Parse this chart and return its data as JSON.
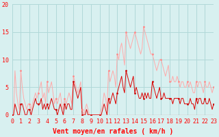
{
  "bg_color": "#d8f0f0",
  "grid_color": "#b0d8d8",
  "line_color_mean": "#dd0000",
  "line_color_gust": "#ffaaaa",
  "xlabel": "Vent moyen/en rafales ( km/h )",
  "ylim": [
    0,
    20
  ],
  "xlim_min": 0,
  "xlim_max": 23,
  "yticks": [
    0,
    5,
    10,
    15,
    20
  ],
  "xticks": [
    0,
    1,
    2,
    3,
    4,
    5,
    6,
    7,
    8,
    9,
    10,
    11,
    12,
    13,
    14,
    15,
    16,
    17,
    18,
    19,
    20,
    21,
    22,
    23
  ],
  "tick_fontsize": 6,
  "xlabel_fontsize": 7,
  "lw_mean": 0.7,
  "lw_gust": 0.7,
  "marker_size": 2.0,
  "t": [
    0.0,
    0.17,
    0.33,
    0.5,
    0.67,
    0.83,
    1.0,
    1.17,
    1.33,
    1.5,
    1.67,
    1.83,
    2.0,
    2.17,
    2.33,
    2.5,
    2.67,
    2.83,
    3.0,
    3.17,
    3.33,
    3.5,
    3.67,
    3.83,
    4.0,
    4.17,
    4.33,
    4.5,
    4.67,
    4.83,
    5.0,
    5.17,
    5.33,
    5.5,
    5.67,
    5.83,
    6.0,
    6.17,
    6.33,
    6.5,
    6.67,
    6.83,
    7.0,
    7.17,
    7.33,
    7.5,
    7.67,
    7.83,
    8.0,
    8.17,
    8.33,
    8.5,
    8.67,
    8.83,
    9.0,
    9.17,
    9.33,
    9.5,
    9.67,
    9.83,
    10.0,
    10.17,
    10.33,
    10.5,
    10.67,
    10.83,
    11.0,
    11.17,
    11.33,
    11.5,
    11.67,
    11.83,
    12.0,
    12.17,
    12.33,
    12.5,
    12.67,
    12.83,
    13.0,
    13.17,
    13.33,
    13.5,
    13.67,
    13.83,
    14.0,
    14.17,
    14.33,
    14.5,
    14.67,
    14.83,
    15.0,
    15.17,
    15.33,
    15.5,
    15.67,
    15.83,
    16.0,
    16.17,
    16.33,
    16.5,
    16.67,
    16.83,
    17.0,
    17.17,
    17.33,
    17.5,
    17.67,
    17.83,
    18.0,
    18.17,
    18.33,
    18.5,
    18.67,
    18.83,
    19.0,
    19.17,
    19.33,
    19.5,
    19.67,
    19.83,
    20.0,
    20.17,
    20.33,
    20.5,
    20.67,
    20.83,
    21.0,
    21.17,
    21.33,
    21.5,
    21.67,
    21.83,
    22.0,
    22.17,
    22.33,
    22.5,
    22.67,
    22.83,
    23.0
  ],
  "mean": [
    0,
    0,
    2,
    1,
    0,
    0,
    2,
    2,
    1,
    0,
    0,
    1,
    1,
    0,
    1,
    2,
    3,
    2,
    2,
    2,
    3,
    1,
    2,
    1,
    2,
    1,
    2,
    3,
    2,
    1,
    1,
    0,
    1,
    2,
    1,
    0,
    2,
    1,
    2,
    2,
    1,
    1,
    6,
    5,
    4,
    3,
    4,
    5,
    0,
    0,
    0,
    1,
    0,
    0,
    0,
    0,
    0,
    0,
    0,
    0,
    0,
    0,
    1,
    2,
    1,
    0,
    3,
    2,
    3,
    4,
    3,
    2,
    4,
    5,
    6,
    7,
    5,
    4,
    8,
    7,
    6,
    5,
    6,
    7,
    4,
    5,
    4,
    3,
    3,
    4,
    3,
    4,
    3,
    4,
    3,
    3,
    6,
    5,
    4,
    3,
    4,
    5,
    3,
    3,
    4,
    3,
    3,
    3,
    3,
    3,
    2,
    3,
    3,
    3,
    3,
    2,
    3,
    3,
    2,
    2,
    2,
    2,
    3,
    2,
    2,
    1,
    3,
    2,
    3,
    3,
    2,
    2,
    3,
    2,
    2,
    3,
    2,
    1,
    2
  ],
  "gust": [
    0,
    0,
    8,
    4,
    2,
    1,
    8,
    5,
    3,
    2,
    1,
    2,
    2,
    1,
    2,
    3,
    4,
    3,
    4,
    5,
    6,
    3,
    4,
    2,
    6,
    4,
    5,
    6,
    4,
    2,
    3,
    2,
    3,
    4,
    2,
    1,
    3,
    2,
    3,
    4,
    3,
    2,
    7,
    6,
    5,
    4,
    5,
    6,
    1,
    0,
    1,
    2,
    1,
    0,
    0,
    0,
    0,
    0,
    0,
    0,
    0,
    1,
    2,
    4,
    3,
    1,
    8,
    6,
    7,
    8,
    7,
    5,
    11,
    10,
    12,
    13,
    11,
    9,
    15,
    14,
    13,
    12,
    13,
    14,
    15,
    14,
    13,
    12,
    11,
    12,
    16,
    15,
    14,
    13,
    12,
    11,
    11,
    10,
    9,
    8,
    9,
    10,
    10,
    9,
    8,
    7,
    8,
    9,
    6,
    6,
    7,
    6,
    6,
    7,
    6,
    5,
    6,
    6,
    5,
    5,
    6,
    5,
    6,
    5,
    4,
    4,
    6,
    5,
    6,
    6,
    5,
    4,
    6,
    5,
    5,
    6,
    5,
    4,
    5
  ],
  "marker_t": [
    0,
    1,
    2,
    3,
    4,
    5,
    6,
    7,
    8,
    9,
    10,
    11,
    12,
    13,
    14,
    15,
    16,
    17,
    18,
    19,
    20,
    21,
    22,
    23
  ],
  "marker_mean": [
    0,
    2,
    1,
    2,
    2,
    1,
    2,
    6,
    0,
    0,
    0,
    3,
    4,
    8,
    4,
    3,
    6,
    3,
    3,
    3,
    2,
    3,
    3,
    2
  ],
  "marker_gust": [
    0,
    8,
    2,
    4,
    6,
    3,
    3,
    7,
    1,
    0,
    0,
    8,
    11,
    15,
    15,
    16,
    11,
    10,
    6,
    6,
    6,
    6,
    6,
    5
  ]
}
